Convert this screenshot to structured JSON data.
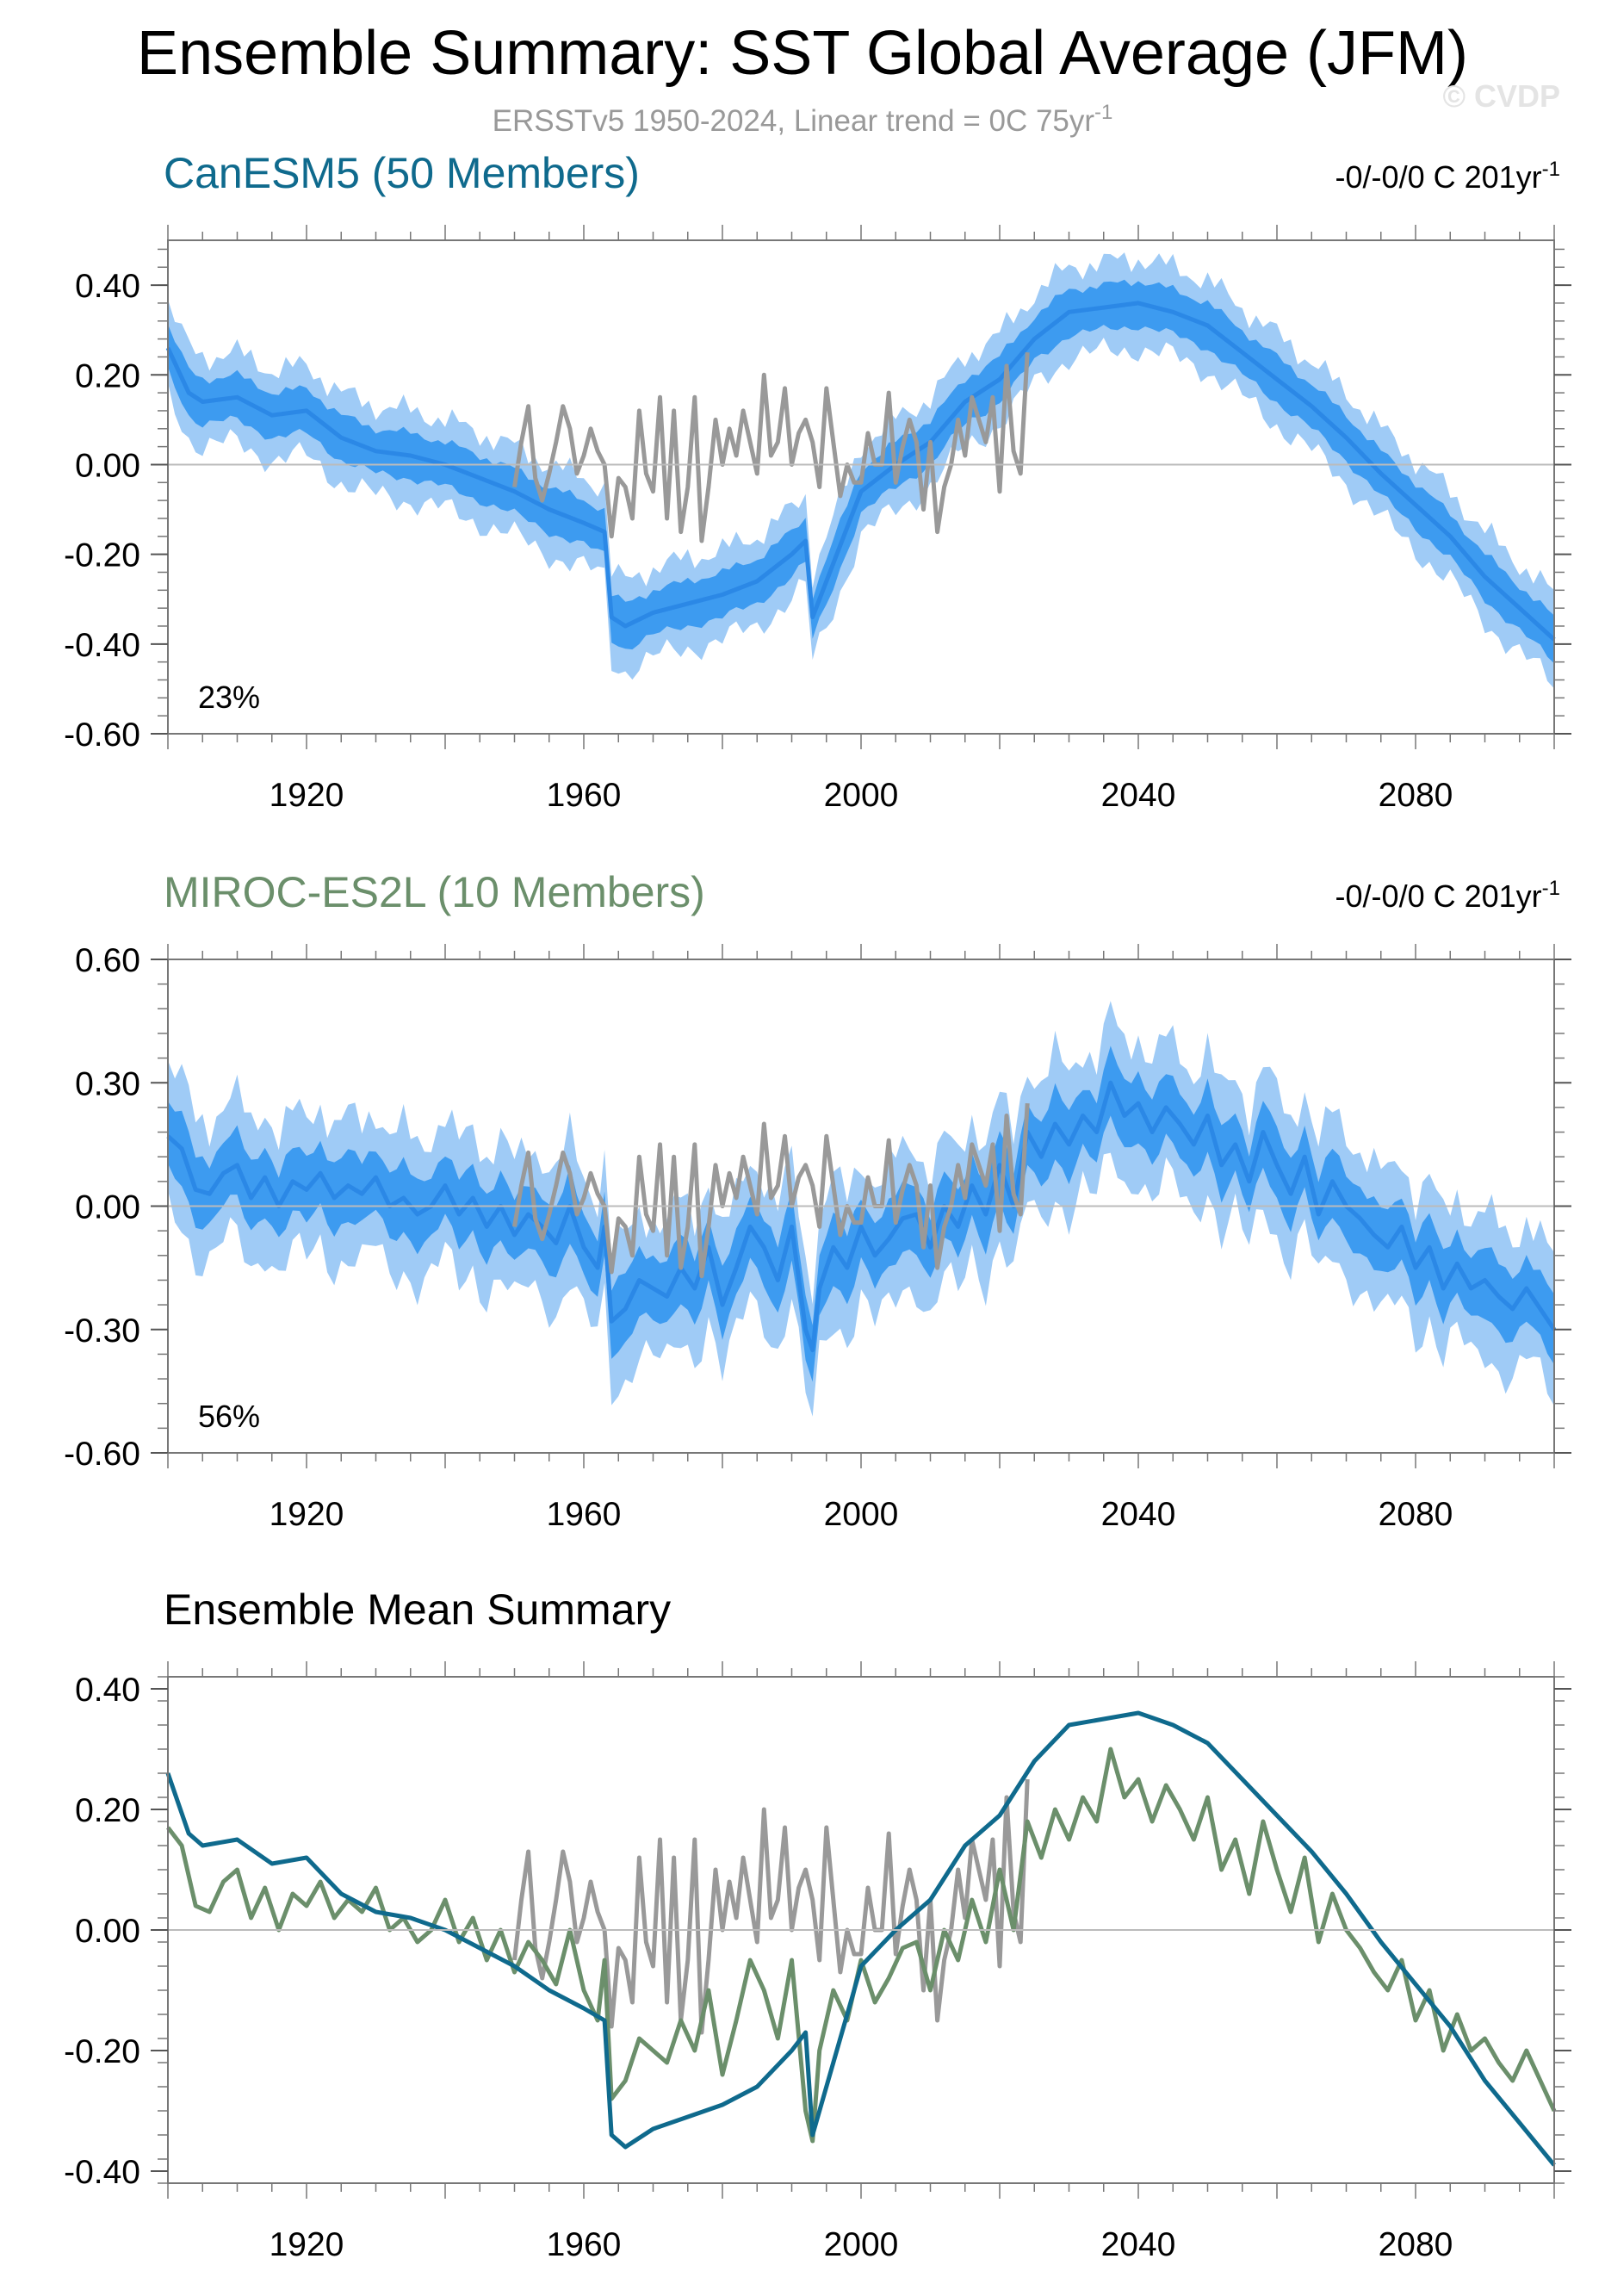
{
  "page": {
    "title": "Ensemble Summary: SST Global Average (JFM)",
    "subtitle": "ERSSTv5 1950-2024, Linear trend = 0C 75yr",
    "subtitle_sup": "-1",
    "watermark": "© CVDP"
  },
  "colors": {
    "band_outer": "#9fcbf6",
    "band_inner": "#3d9bf0",
    "ens_mean": "#2b88e6",
    "obs": "#999999",
    "canesm5": "#0f6a8d",
    "miroc": "#6b8f6b",
    "zero_line": "#bbbbbb"
  },
  "chart_data": [
    {
      "type": "line",
      "panel": "canesm5",
      "title": "CanESM5 (50 Members)",
      "trend_label": "-0/-0/0 C 201yr",
      "trend_sup": "-1",
      "percent_label": "23%",
      "xlim": [
        1900,
        2100
      ],
      "ylim": [
        -0.6,
        0.5
      ],
      "yticks": [
        0.4,
        0.2,
        0.0,
        -0.2,
        -0.4,
        -0.6
      ],
      "ytick_labels": [
        "0.40",
        "0.20",
        "0.00",
        "-0.20",
        "-0.40",
        "-0.60"
      ],
      "xticks": [
        1920,
        1960,
        2000,
        2040,
        2080
      ],
      "xtick_labels": [
        "1920",
        "1960",
        "2000",
        "2040",
        "2080"
      ],
      "series": [
        {
          "name": "ensemble_mean",
          "x": [
            1900,
            1903,
            1905,
            1910,
            1915,
            1920,
            1925,
            1930,
            1935,
            1940,
            1945,
            1950,
            1955,
            1960,
            1963,
            1964,
            1966,
            1970,
            1975,
            1980,
            1985,
            1990,
            1992,
            1993,
            1996,
            2000,
            2005,
            2010,
            2015,
            2020,
            2025,
            2030,
            2035,
            2040,
            2045,
            2050,
            2055,
            2060,
            2065,
            2070,
            2075,
            2080,
            2085,
            2090,
            2095,
            2100
          ],
          "values": [
            0.26,
            0.16,
            0.14,
            0.15,
            0.11,
            0.12,
            0.06,
            0.03,
            0.02,
            0.0,
            -0.03,
            -0.06,
            -0.1,
            -0.13,
            -0.15,
            -0.34,
            -0.36,
            -0.33,
            -0.31,
            -0.29,
            -0.26,
            -0.2,
            -0.17,
            -0.34,
            -0.22,
            -0.06,
            0.0,
            0.05,
            0.14,
            0.19,
            0.28,
            0.34,
            0.35,
            0.36,
            0.34,
            0.31,
            0.25,
            0.19,
            0.13,
            0.06,
            -0.02,
            -0.09,
            -0.16,
            -0.25,
            -0.32,
            -0.39
          ]
        },
        {
          "name": "inner_half_width",
          "value": 0.05
        },
        {
          "name": "outer_half_width",
          "value": 0.1
        },
        {
          "name": "observations",
          "x": [
            1950,
            1951,
            1952,
            1953,
            1954,
            1955,
            1956,
            1957,
            1958,
            1959,
            1960,
            1961,
            1962,
            1963,
            1964,
            1965,
            1966,
            1967,
            1968,
            1969,
            1970,
            1971,
            1972,
            1973,
            1974,
            1975,
            1976,
            1977,
            1978,
            1979,
            1980,
            1981,
            1982,
            1983,
            1984,
            1985,
            1986,
            1987,
            1988,
            1989,
            1990,
            1991,
            1992,
            1993,
            1994,
            1995,
            1996,
            1997,
            1998,
            1999,
            2000,
            2001,
            2002,
            2003,
            2004,
            2005,
            2006,
            2007,
            2008,
            2009,
            2010,
            2011,
            2012,
            2013,
            2014,
            2015,
            2016,
            2017,
            2018,
            2019,
            2020,
            2021,
            2022,
            2023,
            2024
          ],
          "values": [
            -0.05,
            0.05,
            0.13,
            -0.03,
            -0.08,
            -0.02,
            0.05,
            0.13,
            0.08,
            -0.02,
            0.02,
            0.08,
            0.03,
            0.0,
            -0.16,
            -0.03,
            -0.05,
            -0.12,
            0.12,
            -0.02,
            -0.06,
            0.15,
            -0.12,
            0.12,
            -0.15,
            -0.05,
            0.15,
            -0.17,
            -0.05,
            0.1,
            0.0,
            0.08,
            0.02,
            0.12,
            0.05,
            -0.02,
            0.2,
            0.02,
            0.05,
            0.17,
            0.0,
            0.07,
            0.1,
            0.05,
            -0.05,
            0.17,
            0.05,
            -0.07,
            0.0,
            -0.04,
            -0.04,
            0.07,
            0.0,
            0.0,
            0.16,
            -0.04,
            0.04,
            0.1,
            0.05,
            -0.1,
            0.05,
            -0.15,
            -0.05,
            0.0,
            0.1,
            0.02,
            0.15,
            0.1,
            0.05,
            0.15,
            -0.06,
            0.22,
            0.03,
            -0.02,
            0.25
          ]
        }
      ]
    },
    {
      "type": "line",
      "panel": "miroc",
      "title": "MIROC-ES2L (10 Members)",
      "trend_label": "-0/-0/0 C 201yr",
      "trend_sup": "-1",
      "percent_label": "56%",
      "xlim": [
        1900,
        2100
      ],
      "ylim": [
        -0.6,
        0.6
      ],
      "yticks": [
        0.6,
        0.3,
        0.0,
        -0.3,
        -0.6
      ],
      "ytick_labels": [
        "0.60",
        "0.30",
        "0.00",
        "-0.30",
        "-0.60"
      ],
      "xticks": [
        1920,
        1960,
        2000,
        2040,
        2080
      ],
      "xtick_labels": [
        "1920",
        "1960",
        "2000",
        "2040",
        "2080"
      ],
      "series": [
        {
          "name": "ensemble_mean",
          "x": [
            1900,
            1902,
            1904,
            1906,
            1908,
            1910,
            1912,
            1914,
            1916,
            1918,
            1920,
            1922,
            1924,
            1926,
            1928,
            1930,
            1932,
            1934,
            1936,
            1938,
            1940,
            1942,
            1944,
            1946,
            1948,
            1950,
            1952,
            1954,
            1956,
            1958,
            1960,
            1962,
            1963,
            1964,
            1966,
            1968,
            1970,
            1972,
            1974,
            1976,
            1978,
            1980,
            1982,
            1984,
            1986,
            1988,
            1990,
            1992,
            1993,
            1994,
            1996,
            1998,
            2000,
            2002,
            2004,
            2006,
            2008,
            2010,
            2012,
            2014,
            2016,
            2018,
            2020,
            2022,
            2024,
            2026,
            2028,
            2030,
            2032,
            2034,
            2036,
            2038,
            2040,
            2042,
            2044,
            2046,
            2048,
            2050,
            2052,
            2054,
            2056,
            2058,
            2060,
            2062,
            2064,
            2066,
            2068,
            2070,
            2072,
            2074,
            2076,
            2078,
            2080,
            2082,
            2084,
            2086,
            2088,
            2090,
            2092,
            2094,
            2096,
            2098,
            2100
          ],
          "values": [
            0.17,
            0.14,
            0.04,
            0.03,
            0.08,
            0.1,
            0.02,
            0.07,
            0.0,
            0.06,
            0.04,
            0.08,
            0.02,
            0.05,
            0.03,
            0.07,
            0.0,
            0.02,
            -0.02,
            0.0,
            0.05,
            -0.02,
            0.02,
            -0.05,
            0.0,
            -0.07,
            -0.02,
            -0.05,
            -0.09,
            0.0,
            -0.1,
            -0.15,
            -0.05,
            -0.28,
            -0.25,
            -0.18,
            -0.2,
            -0.22,
            -0.15,
            -0.2,
            -0.1,
            -0.24,
            -0.15,
            -0.05,
            -0.1,
            -0.18,
            -0.05,
            -0.3,
            -0.35,
            -0.2,
            -0.1,
            -0.15,
            -0.05,
            -0.12,
            -0.08,
            -0.03,
            -0.02,
            -0.1,
            0.0,
            -0.05,
            0.05,
            -0.02,
            0.1,
            0.0,
            0.18,
            0.12,
            0.2,
            0.15,
            0.22,
            0.18,
            0.3,
            0.22,
            0.25,
            0.18,
            0.24,
            0.2,
            0.15,
            0.22,
            0.1,
            0.15,
            0.06,
            0.18,
            0.1,
            0.03,
            0.12,
            -0.02,
            0.06,
            0.0,
            -0.03,
            -0.07,
            -0.1,
            -0.05,
            -0.15,
            -0.1,
            -0.2,
            -0.14,
            -0.2,
            -0.18,
            -0.22,
            -0.25,
            -0.2,
            -0.25,
            -0.3
          ]
        },
        {
          "name": "inner_half_width",
          "value": 0.08
        },
        {
          "name": "outer_half_width",
          "value": 0.17
        },
        {
          "name": "observations",
          "x": [
            1950,
            1951,
            1952,
            1953,
            1954,
            1955,
            1956,
            1957,
            1958,
            1959,
            1960,
            1961,
            1962,
            1963,
            1964,
            1965,
            1966,
            1967,
            1968,
            1969,
            1970,
            1971,
            1972,
            1973,
            1974,
            1975,
            1976,
            1977,
            1978,
            1979,
            1980,
            1981,
            1982,
            1983,
            1984,
            1985,
            1986,
            1987,
            1988,
            1989,
            1990,
            1991,
            1992,
            1993,
            1994,
            1995,
            1996,
            1997,
            1998,
            1999,
            2000,
            2001,
            2002,
            2003,
            2004,
            2005,
            2006,
            2007,
            2008,
            2009,
            2010,
            2011,
            2012,
            2013,
            2014,
            2015,
            2016,
            2017,
            2018,
            2019,
            2020,
            2021,
            2022,
            2023,
            2024
          ],
          "values": [
            -0.05,
            0.05,
            0.13,
            -0.03,
            -0.08,
            -0.02,
            0.05,
            0.13,
            0.08,
            -0.02,
            0.02,
            0.08,
            0.03,
            0.0,
            -0.16,
            -0.03,
            -0.05,
            -0.12,
            0.12,
            -0.02,
            -0.06,
            0.15,
            -0.12,
            0.12,
            -0.15,
            -0.05,
            0.15,
            -0.17,
            -0.05,
            0.1,
            0.0,
            0.08,
            0.02,
            0.12,
            0.05,
            -0.02,
            0.2,
            0.02,
            0.05,
            0.17,
            0.0,
            0.07,
            0.1,
            0.05,
            -0.05,
            0.17,
            0.05,
            -0.07,
            0.0,
            -0.04,
            -0.04,
            0.07,
            0.0,
            0.0,
            0.16,
            -0.04,
            0.04,
            0.1,
            0.05,
            -0.1,
            0.05,
            -0.15,
            -0.05,
            0.0,
            0.1,
            0.02,
            0.15,
            0.1,
            0.05,
            0.15,
            -0.06,
            0.22,
            0.03,
            -0.02,
            0.25
          ]
        }
      ]
    },
    {
      "type": "line",
      "panel": "summary",
      "title": "Ensemble Mean Summary",
      "xlim": [
        1900,
        2100
      ],
      "ylim": [
        -0.42,
        0.42
      ],
      "yticks": [
        0.4,
        0.2,
        0.0,
        -0.2,
        -0.4
      ],
      "ytick_labels": [
        "0.40",
        "0.20",
        "0.00",
        "-0.20",
        "-0.40"
      ],
      "xticks": [
        1920,
        1960,
        2000,
        2040,
        2080
      ],
      "xtick_labels": [
        "1920",
        "1960",
        "2000",
        "2040",
        "2080"
      ],
      "series": [
        {
          "name": "CanESM5",
          "ref": 0
        },
        {
          "name": "MIROC-ES2L",
          "ref": 1
        },
        {
          "name": "observations",
          "ref": 0
        }
      ]
    }
  ]
}
